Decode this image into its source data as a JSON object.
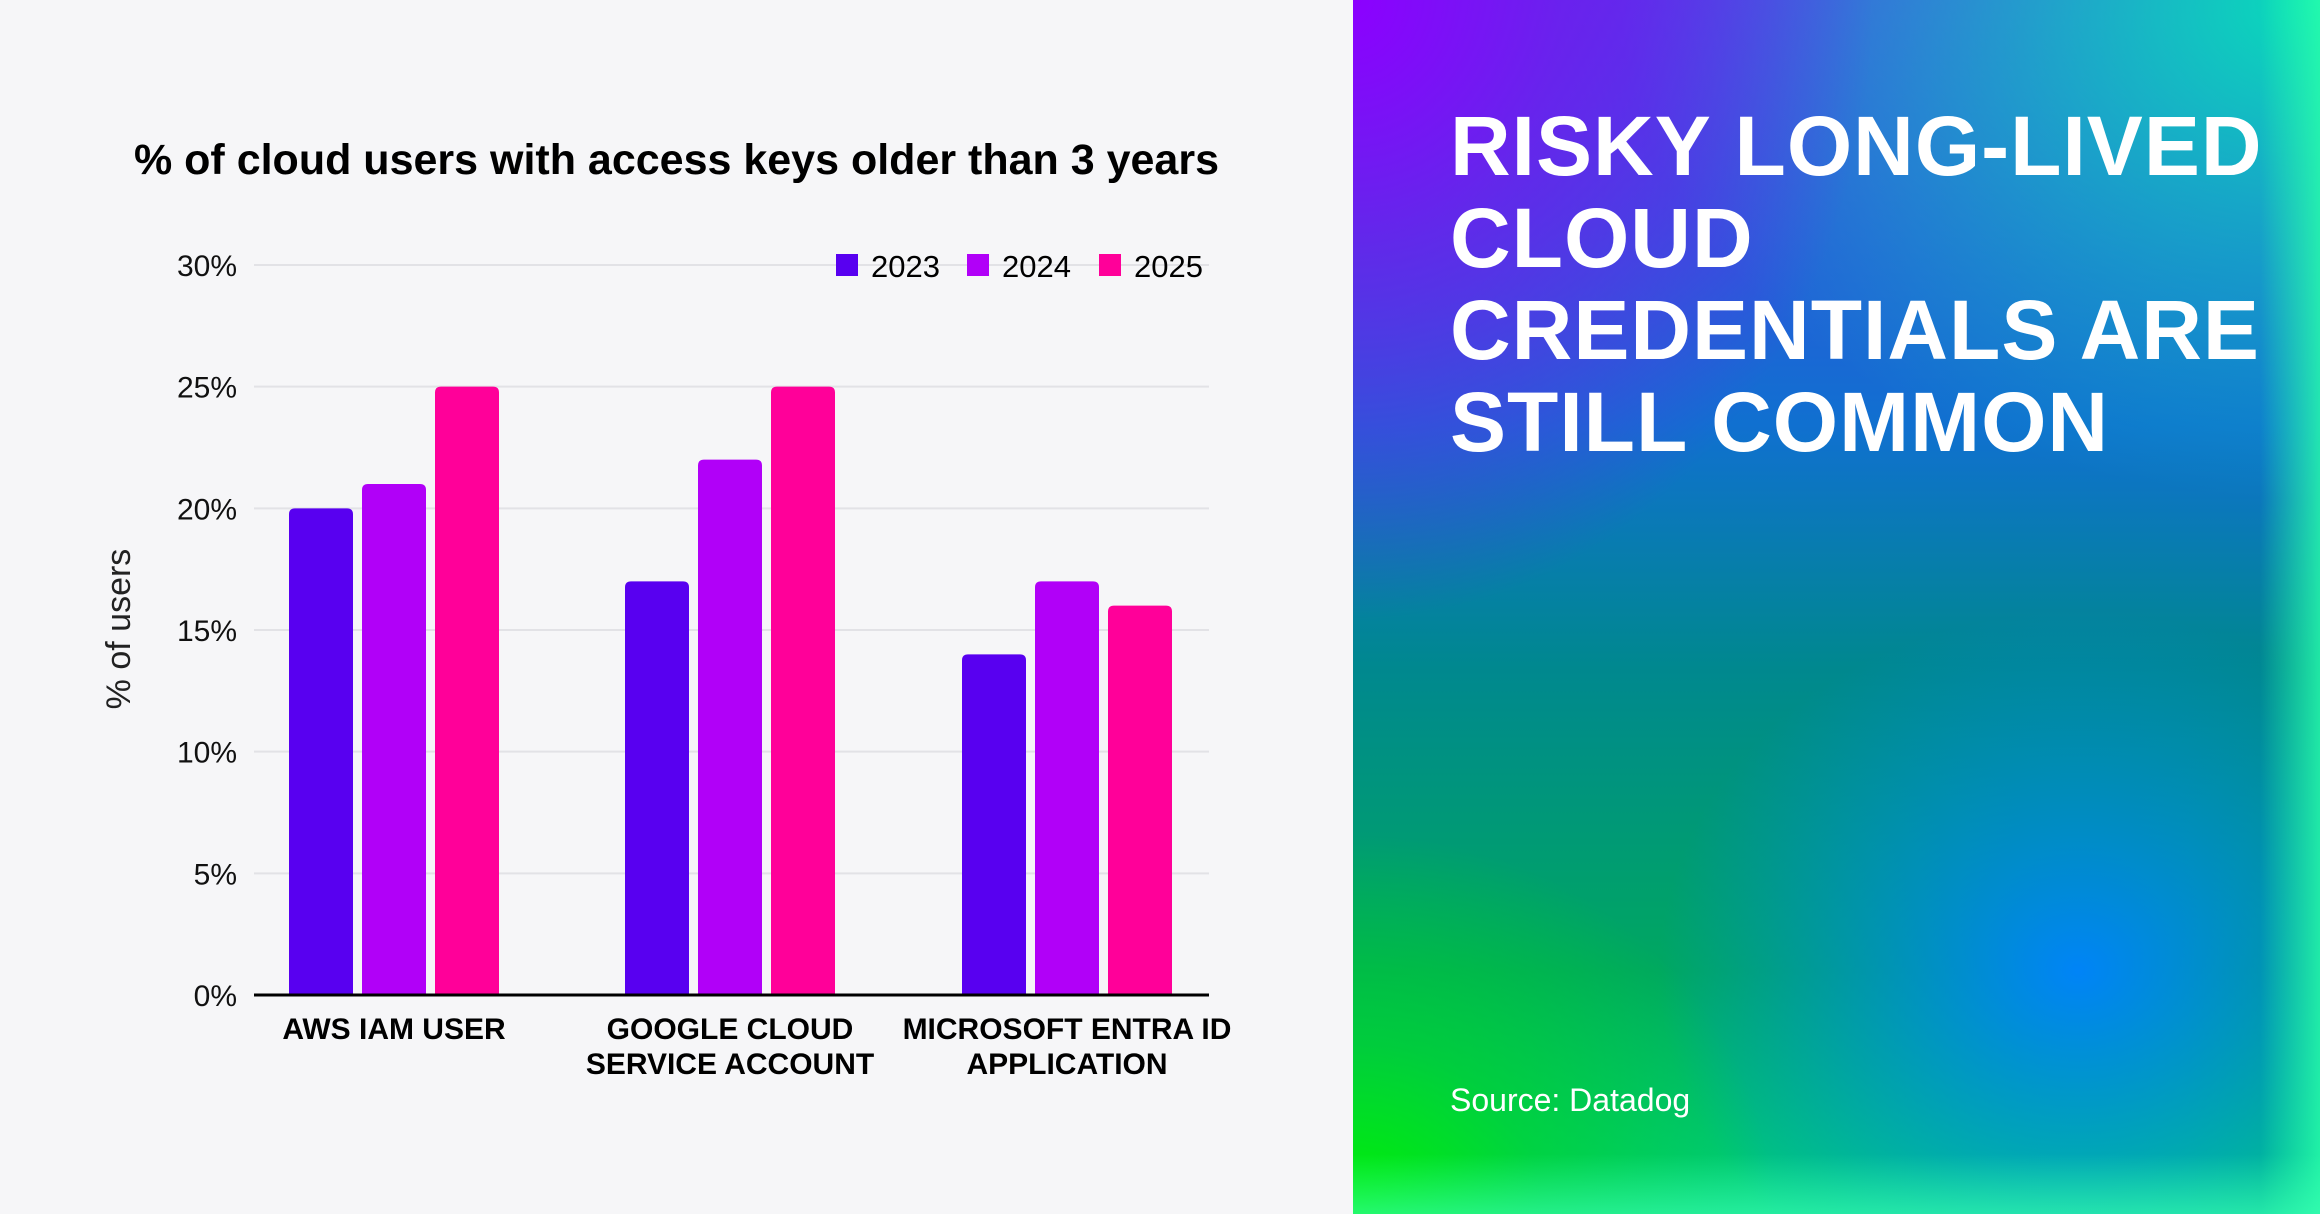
{
  "headline": [
    "RISKY LONG-LIVED",
    "CLOUD",
    "CREDENTIALS ARE",
    "STILL COMMON"
  ],
  "source": "Source: Datadog",
  "colors": {
    "2023": "#5800f0",
    "2024": "#b100f8",
    "2025": "#ff0099",
    "grid": "#e2e2e6",
    "axis": "#000000",
    "background": "#f6f6f8"
  },
  "chart_data": {
    "type": "bar",
    "title": "% of cloud users with access keys older than 3 years",
    "ylabel": "% of users",
    "xlabel": "",
    "ylim": [
      0,
      30
    ],
    "yticks": [
      "0%",
      "5%",
      "10%",
      "15%",
      "20%",
      "25%",
      "30%"
    ],
    "ytick_values": [
      0,
      5,
      10,
      15,
      20,
      25,
      30
    ],
    "grid": true,
    "legend_placement": "top-right",
    "categories": [
      [
        "AWS IAM USER"
      ],
      [
        "GOOGLE CLOUD",
        "SERVICE ACCOUNT"
      ],
      [
        "MICROSOFT ENTRA ID",
        "APPLICATION"
      ]
    ],
    "series": [
      {
        "name": "2023",
        "values": [
          20,
          17,
          14
        ]
      },
      {
        "name": "2024",
        "values": [
          21,
          22,
          17
        ]
      },
      {
        "name": "2025",
        "values": [
          25,
          25,
          16
        ]
      }
    ]
  }
}
